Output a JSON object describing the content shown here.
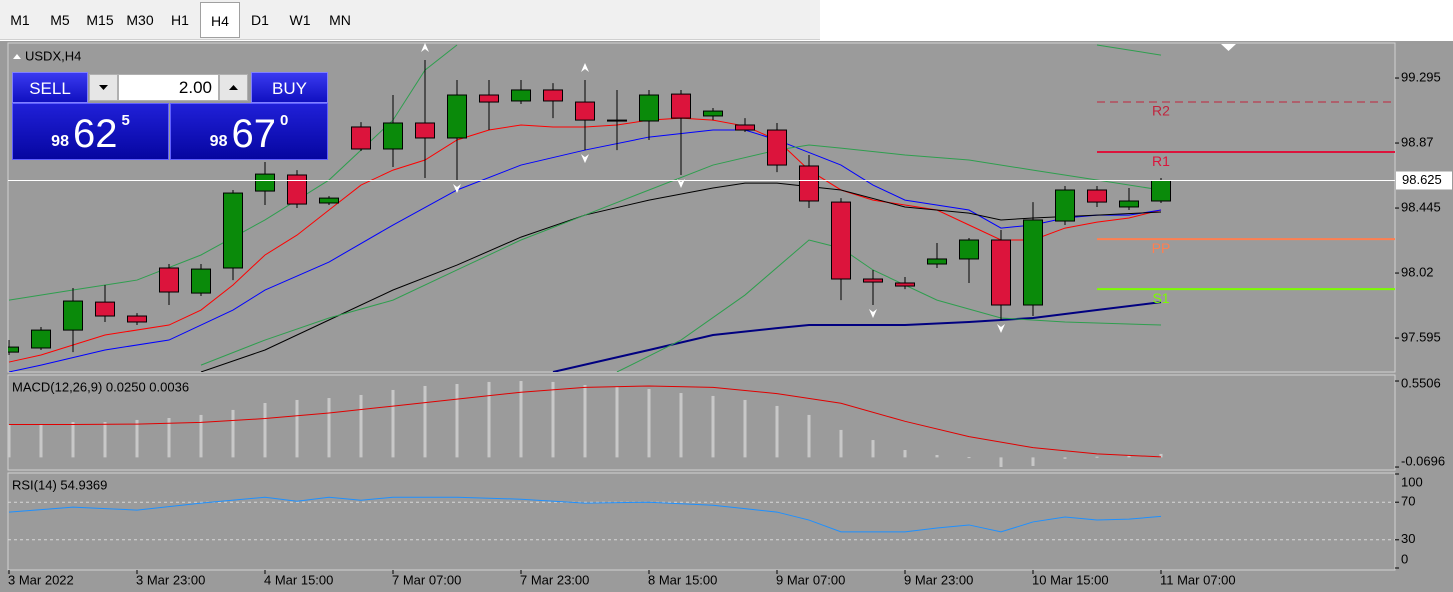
{
  "toolbar": {
    "timeframes": [
      "M1",
      "M5",
      "M15",
      "M30",
      "H1",
      "H4",
      "D1",
      "W1",
      "MN"
    ],
    "selected": "H4"
  },
  "trade_panel": {
    "sell": {
      "label": "SELL",
      "big_figure": "98",
      "pips": "62",
      "point": "5"
    },
    "buy": {
      "label": "BUY",
      "big_figure": "98",
      "pips": "67",
      "point": "0"
    },
    "lot": "2.00"
  },
  "chart_data": [
    {
      "type": "candlestick",
      "title": "USDX,H4",
      "categories": [
        "3 Mar 2022",
        null,
        null,
        null,
        "3 Mar 23:00",
        null,
        null,
        null,
        "4 Mar 15:00",
        null,
        null,
        null,
        "7 Mar 07:00",
        null,
        null,
        null,
        "7 Mar 23:00",
        null,
        null,
        null,
        "8 Mar 15:00",
        null,
        null,
        null,
        "9 Mar 07:00",
        null,
        null,
        null,
        "9 Mar 23:00",
        null,
        null,
        null,
        "10 Mar 15:00",
        null,
        null,
        null,
        "11 Mar 07:00"
      ],
      "open": [
        97.503,
        97.53,
        97.647,
        97.83,
        97.739,
        98.053,
        97.889,
        98.053,
        98.556,
        98.661,
        98.478,
        98.975,
        98.831,
        99.001,
        98.903,
        99.184,
        99.145,
        99.217,
        99.138,
        99.014,
        99.014,
        99.19,
        99.047,
        98.988,
        98.955,
        98.72,
        98.484,
        97.981,
        97.955,
        98.079,
        98.112,
        98.236,
        97.811,
        98.36,
        98.563,
        98.452,
        98.491
      ],
      "high": [
        97.582,
        97.667,
        97.922,
        97.942,
        97.758,
        98.079,
        98.079,
        98.563,
        98.746,
        98.693,
        98.523,
        99.007,
        99.184,
        99.413,
        99.282,
        99.282,
        99.282,
        99.262,
        99.282,
        99.217,
        99.217,
        99.217,
        99.099,
        99.033,
        99.001,
        98.792,
        98.51,
        98.04,
        97.994,
        98.216,
        98.249,
        98.301,
        98.484,
        98.589,
        98.589,
        98.576,
        98.641
      ],
      "low": [
        97.484,
        97.517,
        97.503,
        97.7,
        97.68,
        97.811,
        97.87,
        97.974,
        98.465,
        98.445,
        98.465,
        98.818,
        98.713,
        98.641,
        98.628,
        98.955,
        99.125,
        99.033,
        98.824,
        98.824,
        98.89,
        98.661,
        99.02,
        98.942,
        98.68,
        98.445,
        97.843,
        97.811,
        97.915,
        98.053,
        97.955,
        97.713,
        97.739,
        98.334,
        98.452,
        98.432,
        98.478
      ],
      "close": [
        97.536,
        97.647,
        97.837,
        97.739,
        97.7,
        97.896,
        98.046,
        98.543,
        98.667,
        98.471,
        98.51,
        98.831,
        99.001,
        98.903,
        99.184,
        99.138,
        99.217,
        99.145,
        99.02,
        99.02,
        99.184,
        99.033,
        99.079,
        98.955,
        98.726,
        98.491,
        97.981,
        97.961,
        97.935,
        98.112,
        98.236,
        97.811,
        98.367,
        98.563,
        98.484,
        98.491,
        98.625
      ],
      "up_color": "#0a8a0a",
      "down_color": "#dc143c",
      "ylim": [
        97.373,
        99.524
      ],
      "yticks": [
        97.595,
        98.02,
        98.445,
        98.87,
        99.295
      ],
      "current_price": 98.625,
      "overlays": [
        {
          "color": "#ff0000",
          "width": 1,
          "x": [
            0,
            1,
            3,
            5,
            6,
            7,
            8,
            9,
            10,
            11,
            12,
            13,
            14,
            15,
            16,
            17,
            18,
            19,
            20,
            21,
            22,
            23,
            24,
            25,
            26,
            27,
            28,
            29,
            30,
            31,
            32,
            33,
            34,
            35,
            36
          ],
          "values": [
            97.438,
            97.484,
            97.615,
            97.68,
            97.778,
            97.942,
            98.138,
            98.268,
            98.432,
            98.595,
            98.693,
            98.759,
            98.89,
            98.955,
            98.988,
            98.975,
            98.975,
            98.988,
            99.02,
            99.033,
            99.02,
            98.981,
            98.89,
            98.693,
            98.563,
            98.497,
            98.465,
            98.432,
            98.334,
            98.236,
            98.236,
            98.314,
            98.353,
            98.38,
            98.432
          ]
        },
        {
          "color": "#0000ff",
          "width": 1,
          "x": [
            0,
            1,
            3,
            5,
            7,
            8,
            10,
            12,
            14,
            16,
            18,
            20,
            22,
            23,
            24,
            26,
            27,
            28,
            30,
            31,
            32,
            33,
            34,
            35,
            36
          ],
          "values": [
            97.373,
            97.418,
            97.517,
            97.582,
            97.778,
            97.909,
            98.092,
            98.334,
            98.563,
            98.726,
            98.824,
            98.909,
            98.955,
            98.955,
            98.89,
            98.726,
            98.595,
            98.497,
            98.432,
            98.314,
            98.334,
            98.38,
            98.399,
            98.399,
            98.432
          ]
        },
        {
          "color": "#000000",
          "width": 1,
          "x": [
            6,
            8,
            10,
            12,
            14,
            16,
            18,
            20,
            22,
            23,
            24,
            26,
            28,
            30,
            31,
            32,
            34,
            36
          ],
          "values": [
            97.373,
            97.517,
            97.713,
            97.909,
            98.072,
            98.255,
            98.399,
            98.497,
            98.576,
            98.608,
            98.608,
            98.563,
            98.452,
            98.412,
            98.367,
            98.38,
            98.399,
            98.419
          ]
        },
        {
          "color": "#000080",
          "width": 2,
          "x": [
            17,
            20,
            22,
            24,
            25,
            28,
            30,
            32,
            34,
            36
          ],
          "values": [
            97.373,
            97.517,
            97.615,
            97.66,
            97.68,
            97.68,
            97.7,
            97.726,
            97.778,
            97.83
          ]
        },
        {
          "color": "#2e9e4e",
          "width": 1,
          "x": [
            0,
            2,
            4,
            6,
            8,
            10,
            12,
            13,
            14,
            15,
            34,
            36
          ],
          "values": [
            97.843,
            97.909,
            97.974,
            98.138,
            98.367,
            98.628,
            99.02,
            99.347,
            99.511,
            null,
            99.511,
            99.445
          ]
        },
        {
          "color": "#2e9e4e",
          "width": 1,
          "x": [
            6,
            8,
            10,
            12,
            14,
            16,
            18,
            20,
            22,
            24,
            25,
            26,
            28,
            30,
            32,
            34,
            36
          ],
          "values": [
            97.418,
            97.582,
            97.726,
            97.843,
            98.04,
            98.236,
            98.399,
            98.563,
            98.726,
            98.824,
            98.857,
            98.837,
            98.792,
            98.759,
            98.693,
            98.628,
            98.563
          ]
        },
        {
          "color": "#2e9e4e",
          "width": 1,
          "x": [
            19,
            21,
            23,
            25,
            26,
            27,
            29,
            31,
            33,
            36
          ],
          "values": [
            97.373,
            97.582,
            97.876,
            98.236,
            98.183,
            98.04,
            97.843,
            97.726,
            97.7,
            97.68
          ]
        }
      ],
      "levels": [
        {
          "label": "R2",
          "value": 99.138,
          "color": "#c0243c",
          "dash": true
        },
        {
          "label": "R1",
          "value": 98.811,
          "color": "#dc143c",
          "dash": false
        },
        {
          "label": "PP",
          "value": 98.242,
          "color": "#ff7f50",
          "dash": false
        },
        {
          "label": "S1",
          "value": 97.915,
          "color": "#7cfc00",
          "dash": false
        }
      ],
      "fractals": {
        "up": [
          13,
          18
        ],
        "down": [
          14,
          18,
          21,
          27,
          31
        ]
      }
    },
    {
      "type": "macd",
      "title": "MACD(12,26,9) 0.0250 0.0036",
      "values": [
        0.234,
        0.234,
        0.255,
        0.255,
        0.27,
        0.284,
        0.306,
        0.342,
        0.392,
        0.414,
        0.428,
        0.45,
        0.486,
        0.515,
        0.529,
        0.544,
        0.5506,
        0.544,
        0.522,
        0.508,
        0.493,
        0.464,
        0.443,
        0.414,
        0.371,
        0.306,
        0.198,
        0.125,
        0.053,
        0.017,
        0.002,
        -0.0696,
        -0.062,
        -0.01,
        0.005,
        0.015,
        0.025
      ],
      "color": "#c8c8c8",
      "signal": {
        "color": "#e00000",
        "x": [
          0,
          2,
          4,
          6,
          8,
          10,
          12,
          14,
          16,
          18,
          20,
          22,
          24,
          26,
          28,
          30,
          32,
          34,
          36
        ],
        "values": [
          0.237,
          0.237,
          0.24,
          0.252,
          0.28,
          0.32,
          0.37,
          0.42,
          0.47,
          0.505,
          0.515,
          0.505,
          0.46,
          0.39,
          0.26,
          0.15,
          0.07,
          0.025,
          0.0036
        ]
      },
      "ylim": [
        -0.091,
        0.594
      ],
      "yticks": [
        -0.0696,
        0.5506
      ]
    },
    {
      "type": "line",
      "title": "RSI(14) 54.9369",
      "color": "#1e90ff",
      "x": [
        0,
        2,
        4,
        6,
        8,
        9,
        10,
        11,
        12,
        14,
        16,
        18,
        20,
        22,
        24,
        25,
        26,
        28,
        29,
        30,
        31,
        32,
        33,
        34,
        35,
        36
      ],
      "values": [
        59.5,
        64.7,
        61.6,
        69.0,
        75.3,
        71.0,
        75.3,
        72.1,
        75.3,
        75.3,
        73.2,
        69.0,
        70.0,
        66.8,
        59.5,
        51.0,
        38.4,
        38.4,
        42.6,
        45.8,
        38.4,
        49.0,
        54.2,
        51.0,
        52.0,
        54.9369
      ],
      "ylim": [
        0,
        100
      ],
      "yticks": [
        0,
        30,
        70,
        100
      ],
      "levels": [
        30,
        70
      ]
    }
  ]
}
